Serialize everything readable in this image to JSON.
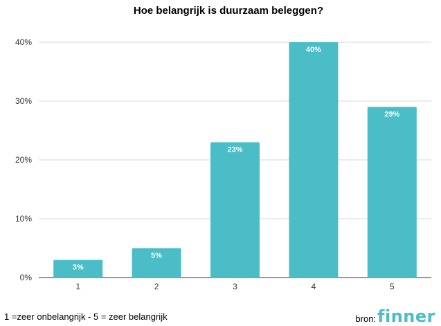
{
  "chart_data": {
    "type": "bar",
    "title": "Hoe belangrijk is duurzaam beleggen?",
    "categories": [
      "1",
      "2",
      "3",
      "4",
      "5"
    ],
    "values": [
      3,
      5,
      23,
      40,
      29
    ],
    "data_labels": [
      "3%",
      "5%",
      "23%",
      "40%",
      "29%"
    ],
    "y_ticks": [
      "0%",
      "10%",
      "20%",
      "30%",
      "40%"
    ],
    "ylim": [
      0,
      40
    ],
    "grid": true,
    "bar_color": "#4ABDC6"
  },
  "footer": {
    "note": "1 =zeer onbelangrijk - 5 = zeer belangrijk",
    "source_label": "bron:",
    "source_logo": "finner",
    "logo_color": "#4ABDC6"
  }
}
